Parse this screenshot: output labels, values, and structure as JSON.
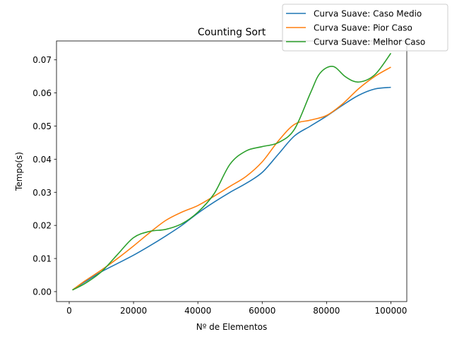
{
  "chart_data": {
    "type": "line",
    "title": "Counting Sort",
    "xlabel": "Nº de Elementos",
    "ylabel": "Tempo(s)",
    "xlim": [
      -3950,
      104950
    ],
    "ylim": [
      -0.003,
      0.0757
    ],
    "xticks": [
      0,
      20000,
      40000,
      60000,
      80000,
      100000
    ],
    "xtick_labels": [
      "0",
      "20000",
      "40000",
      "60000",
      "80000",
      "100000"
    ],
    "yticks": [
      0.0,
      0.01,
      0.02,
      0.03,
      0.04,
      0.05,
      0.06,
      0.07
    ],
    "ytick_labels": [
      "0.00",
      "0.01",
      "0.02",
      "0.03",
      "0.04",
      "0.05",
      "0.06",
      "0.07"
    ],
    "grid": false,
    "legend_position": "top-right",
    "series": [
      {
        "name": "Curva Suave: Caso Medio",
        "color": "#1f77b4",
        "x": [
          1000,
          5000,
          10000,
          15000,
          20000,
          25000,
          30000,
          35000,
          40000,
          45000,
          50000,
          55000,
          60000,
          65000,
          70000,
          75000,
          80000,
          85000,
          90000,
          95000,
          100000
        ],
        "y": [
          0.0005,
          0.003,
          0.006,
          0.0085,
          0.011,
          0.0138,
          0.0168,
          0.02,
          0.0237,
          0.027,
          0.03,
          0.0327,
          0.036,
          0.0415,
          0.047,
          0.05,
          0.053,
          0.0563,
          0.0593,
          0.0612,
          0.0617
        ]
      },
      {
        "name": "Curva Suave: Pior Caso",
        "color": "#ff7f0e",
        "x": [
          1000,
          5000,
          10000,
          15000,
          20000,
          25000,
          30000,
          35000,
          40000,
          45000,
          50000,
          55000,
          60000,
          65000,
          70000,
          75000,
          80000,
          85000,
          90000,
          95000,
          100000
        ],
        "y": [
          0.0005,
          0.0033,
          0.0065,
          0.01,
          0.0138,
          0.0178,
          0.0215,
          0.024,
          0.026,
          0.0288,
          0.0318,
          0.0348,
          0.0392,
          0.0455,
          0.0505,
          0.0518,
          0.0532,
          0.0567,
          0.0613,
          0.065,
          0.0678
        ]
      },
      {
        "name": "Curva Suave: Melhor Caso",
        "color": "#2ca02c",
        "x": [
          1000,
          5000,
          10000,
          15000,
          20000,
          25000,
          30000,
          35000,
          40000,
          45000,
          50000,
          55000,
          60000,
          65000,
          70000,
          75000,
          78000,
          82000,
          86000,
          90000,
          95000,
          100000
        ],
        "y": [
          0.0005,
          0.0025,
          0.006,
          0.0112,
          0.0163,
          0.0182,
          0.0188,
          0.0205,
          0.024,
          0.0295,
          0.0385,
          0.0425,
          0.0438,
          0.045,
          0.049,
          0.06,
          0.066,
          0.068,
          0.0648,
          0.0633,
          0.0655,
          0.072
        ]
      }
    ]
  }
}
